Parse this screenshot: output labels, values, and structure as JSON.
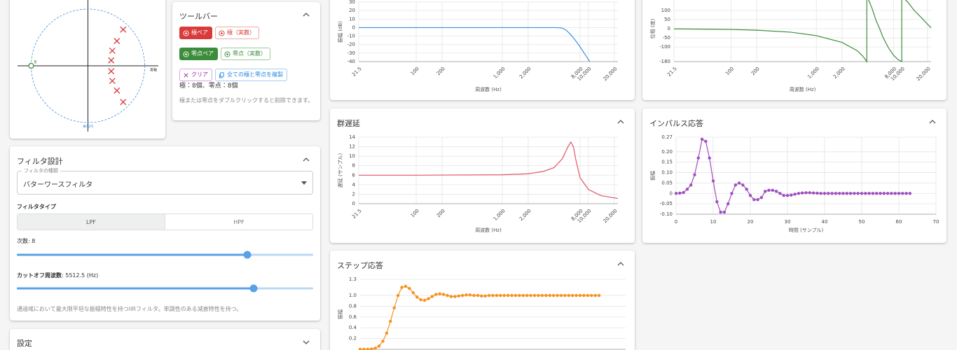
{
  "chart_data": [
    {
      "type": "pole-zero",
      "xlabel": "実軸",
      "unit_circle_label": "単位円",
      "poles": {
        "x": [
          0.62,
          0.51,
          0.43,
          0.41,
          0.41,
          0.43,
          0.51,
          0.62
        ],
        "y": [
          0.6,
          0.41,
          0.25,
          0.09,
          -0.09,
          -0.25,
          -0.41,
          -0.6
        ]
      },
      "zeros": {
        "x": [
          -1
        ],
        "y": [
          0
        ],
        "multiplicity": [
          8
        ]
      },
      "pole_color": "#d93a3a",
      "zero_color": "#3c8c3c",
      "xlim": [
        -1.24,
        1.24
      ],
      "ylim": [
        -1.09,
        1.09
      ]
    },
    {
      "type": "line",
      "xscale": "log",
      "xlabel": "周波数 (Hz)",
      "ylabel": "振幅 (dB)",
      "x": [
        21.5,
        100,
        200,
        500,
        1000,
        2000,
        3000,
        4000,
        4500,
        5000,
        5512.5,
        6000,
        6500,
        7000,
        7500,
        8000,
        8500,
        9000,
        9500,
        10000,
        10400
      ],
      "series": [
        {
          "color": "#3d8fe0",
          "values": [
            0,
            0,
            0,
            0,
            0,
            0,
            0,
            -0.01,
            -0.1,
            -0.6,
            -3,
            -6.5,
            -10.5,
            -14.5,
            -18.5,
            -22.5,
            -26.5,
            -30.5,
            -34,
            -37.5,
            -40
          ]
        }
      ],
      "xlim": [
        21.5,
        22050
      ],
      "ylim": [
        -40,
        30
      ],
      "yticks": [
        -40,
        -30,
        -20,
        -10,
        0,
        10,
        20,
        30
      ],
      "xticks": [
        21.5,
        100,
        200,
        {
          "value": 1000,
          "label": "1,000"
        },
        {
          "value": 2000,
          "label": "2,000"
        },
        {
          "value": 8000,
          "label": "8,000"
        },
        {
          "value": 10000,
          "label": "10,000"
        },
        {
          "value": 20000,
          "label": "20,000"
        }
      ],
      "grid": true
    },
    {
      "type": "line",
      "xscale": "log",
      "xlabel": "周波数 (Hz)",
      "ylabel": "位相 (度)",
      "x": [
        21.5,
        100,
        200,
        500,
        1000,
        2000,
        3000,
        3500,
        3900,
        3900,
        4500,
        5000,
        5512.5,
        6000,
        7000,
        8000,
        9000,
        10000,
        10000,
        12000,
        14000,
        17000,
        20000,
        22050
      ],
      "series": [
        {
          "color": "#3c8c3c",
          "values": [
            -1,
            -4,
            -8,
            -19,
            -38,
            -75,
            -120,
            -150,
            -180,
            180,
            110,
            45,
            0,
            -45,
            -105,
            -145,
            -168,
            -180,
            180,
            140,
            100,
            60,
            25,
            5
          ]
        }
      ],
      "xlim": [
        21.5,
        22050
      ],
      "ylim": [
        -180,
        180
      ],
      "yticks": [
        -180,
        -100,
        -50,
        0,
        50,
        100
      ],
      "xticks": [
        21.5,
        100,
        200,
        {
          "value": 1000,
          "label": "1,000"
        },
        {
          "value": 2000,
          "label": "2,000"
        },
        {
          "value": 8000,
          "label": "8,000"
        },
        {
          "value": 10000,
          "label": "10,000"
        },
        {
          "value": 20000,
          "label": "20,000"
        }
      ],
      "grid": true
    },
    {
      "type": "line",
      "xscale": "log",
      "title": "群遅延",
      "xlabel": "周波数 (Hz)",
      "ylabel": "遅延 (サンプル)",
      "x": [
        21.5,
        100,
        1000,
        2000,
        3000,
        4000,
        5000,
        5800,
        6270,
        6700,
        7200,
        8000,
        10000,
        14000,
        22050
      ],
      "series": [
        {
          "color": "#e0556a",
          "values": [
            6,
            6,
            6.1,
            6.3,
            6.8,
            7.6,
            9.5,
            12,
            13,
            12,
            9,
            5.5,
            3,
            1.7,
            1.1
          ]
        }
      ],
      "xlim": [
        21.5,
        22050
      ],
      "ylim": [
        0,
        14
      ],
      "yticks": [
        0,
        2,
        4,
        6,
        8,
        10,
        12,
        14
      ],
      "xticks": [
        21.5,
        100,
        200,
        {
          "value": 1000,
          "label": "1,000"
        },
        {
          "value": 2000,
          "label": "2,000"
        },
        {
          "value": 8000,
          "label": "8,000"
        },
        {
          "value": 10000,
          "label": "10,000"
        },
        {
          "value": 20000,
          "label": "20,000"
        }
      ],
      "grid": true
    },
    {
      "type": "line",
      "markers": true,
      "title": "インパルス応答",
      "xlabel": "時間 (サンプル)",
      "ylabel": "振幅",
      "x": [
        0,
        1,
        2,
        3,
        4,
        5,
        6,
        7,
        8,
        9,
        10,
        11,
        12,
        13,
        14,
        15,
        16,
        17,
        18,
        19,
        20,
        21,
        22,
        23,
        24,
        25,
        26,
        27,
        28,
        29,
        30,
        31,
        32,
        33,
        34,
        35,
        36,
        37,
        38,
        39,
        40,
        41,
        42,
        43,
        44,
        45,
        46,
        47,
        48,
        49,
        50,
        51,
        52,
        53,
        54,
        55,
        56,
        57,
        58,
        59,
        60,
        61,
        62,
        63
      ],
      "series": [
        {
          "color": "#a04fbf",
          "values": [
            0,
            0.001,
            0.004,
            0.02,
            0.04,
            0.09,
            0.17,
            0.26,
            0.25,
            0.17,
            0.06,
            -0.04,
            -0.09,
            -0.09,
            -0.05,
            0,
            0.04,
            0.05,
            0.04,
            0.02,
            -0.01,
            -0.03,
            -0.03,
            -0.02,
            0.01,
            0.015,
            0.015,
            0.01,
            0,
            -0.01,
            -0.01,
            -0.008,
            -0.004,
            0,
            0.002,
            0.003,
            0.003,
            0.002,
            0.001,
            0,
            0,
            0,
            0,
            0,
            0,
            0,
            0,
            0,
            0,
            0,
            0,
            0,
            0,
            0,
            0,
            0,
            0,
            0,
            0,
            0,
            0,
            0,
            0,
            0
          ]
        }
      ],
      "xlim": [
        0,
        70
      ],
      "ylim": [
        -0.1,
        0.27
      ],
      "xticks": [
        0,
        10,
        20,
        30,
        40,
        50,
        60,
        70
      ],
      "yticks": [
        {
          "value": -0.1,
          "label": "-0.10"
        },
        -0.05,
        0,
        0.05,
        {
          "value": 0.1,
          "label": "0.10"
        },
        0.15,
        {
          "value": 0.2,
          "label": "0.20"
        },
        0.27
      ],
      "grid": true
    },
    {
      "type": "line",
      "markers": true,
      "title": "ステップ応答",
      "ylabel": "振幅",
      "x": [
        0,
        1,
        2,
        3,
        4,
        5,
        6,
        7,
        8,
        9,
        10,
        11,
        12,
        13,
        14,
        15,
        16,
        17,
        18,
        19,
        20,
        21,
        22,
        23,
        24,
        25,
        26,
        27,
        28,
        29,
        30,
        31,
        32,
        33,
        34,
        35,
        36,
        37,
        38,
        39,
        40,
        41,
        42,
        43,
        44,
        45,
        46,
        47,
        48,
        49,
        50,
        51,
        52,
        53,
        54,
        55,
        56,
        57,
        58,
        59,
        60,
        61,
        62,
        63
      ],
      "series": [
        {
          "color": "#f5921e",
          "values": [
            0,
            0,
            0.001,
            0.005,
            0.02,
            0.06,
            0.15,
            0.3,
            0.52,
            0.77,
            1.0,
            1.15,
            1.17,
            1.13,
            1.05,
            0.97,
            0.92,
            0.91,
            0.94,
            0.98,
            1.02,
            1.03,
            1.02,
            1.0,
            0.98,
            0.98,
            0.99,
            1.0,
            1.01,
            1.01,
            1.0,
            1.0,
            0.99,
            0.99,
            1.0,
            1.0,
            1.0,
            1.0,
            1.0,
            1.0,
            1.0,
            1.0,
            1.0,
            1.0,
            1.0,
            1.0,
            1.0,
            1.0,
            1.0,
            1.0,
            1.0,
            1.0,
            1.0,
            1.0,
            1.0,
            1.0,
            1.0,
            1.0,
            1.0,
            1.0,
            1.0,
            1.0,
            1.0,
            1.0
          ]
        }
      ],
      "xlim": [
        0,
        70
      ],
      "ylim": [
        0,
        1.3
      ],
      "yticks": [
        0.2,
        0.4,
        0.6,
        0.8,
        {
          "value": 1,
          "label": "1.0"
        },
        1.3
      ],
      "grid": true
    }
  ],
  "toolbar": {
    "title": "ツールバー",
    "buttons": [
      "極ペア",
      "極（実数）",
      "零点ペア",
      "零点（実数）",
      "クリア",
      "全ての極と零点を複製"
    ],
    "counts": "極：8個、零点：8個",
    "note": "極または零点をダブルクリックすると削除できます。"
  },
  "filter_design": {
    "title": "フィルタ設計",
    "filter_kind_label": "フィルタの種類",
    "filter_kind": "バターワースフィルタ",
    "filter_type_label": "フィルタタイプ",
    "filter_types": [
      "LPF",
      "HPF"
    ],
    "order_label": "次数: 8",
    "cutoff_label": "カットオフ周波数",
    "cutoff_value": ": 5512.5 (Hz)",
    "description": "通過域において最大限平坦な振幅特性を持つIIRフィルタ。単調性のある減衰特性を持つ。"
  },
  "settings": {
    "title": "設定"
  }
}
